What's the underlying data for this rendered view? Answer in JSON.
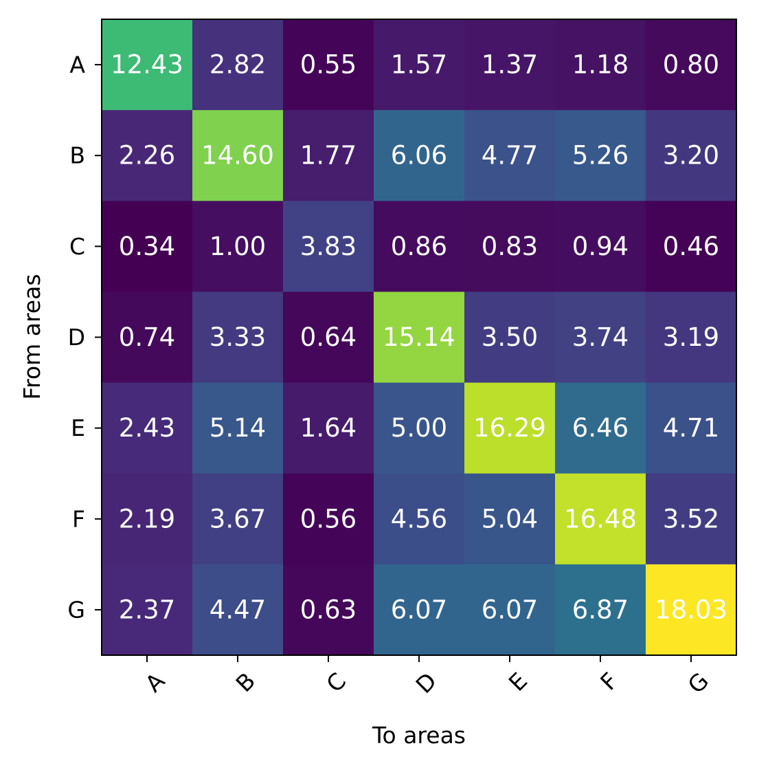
{
  "chart_data": {
    "type": "heatmap",
    "xlabel": "To areas",
    "ylabel": "From areas",
    "x_categories": [
      "A",
      "B",
      "C",
      "D",
      "E",
      "F",
      "G"
    ],
    "y_categories": [
      "A",
      "B",
      "C",
      "D",
      "E",
      "F",
      "G"
    ],
    "values": [
      [
        12.43,
        2.82,
        0.55,
        1.57,
        1.37,
        1.18,
        0.8
      ],
      [
        2.26,
        14.6,
        1.77,
        6.06,
        4.77,
        5.26,
        3.2
      ],
      [
        0.34,
        1.0,
        3.83,
        0.86,
        0.83,
        0.94,
        0.46
      ],
      [
        0.74,
        3.33,
        0.64,
        15.14,
        3.5,
        3.74,
        3.19
      ],
      [
        2.43,
        5.14,
        1.64,
        5.0,
        16.29,
        6.46,
        4.71
      ],
      [
        2.19,
        3.67,
        0.56,
        4.56,
        5.04,
        16.48,
        3.52
      ],
      [
        2.37,
        4.47,
        0.63,
        6.07,
        6.07,
        6.87,
        18.03
      ]
    ],
    "colormap": "viridis",
    "x_tick_rotation_deg": 45,
    "value_format_decimals": 2,
    "cell_text_color": "#ffffff",
    "grid": false,
    "legend": "none"
  }
}
